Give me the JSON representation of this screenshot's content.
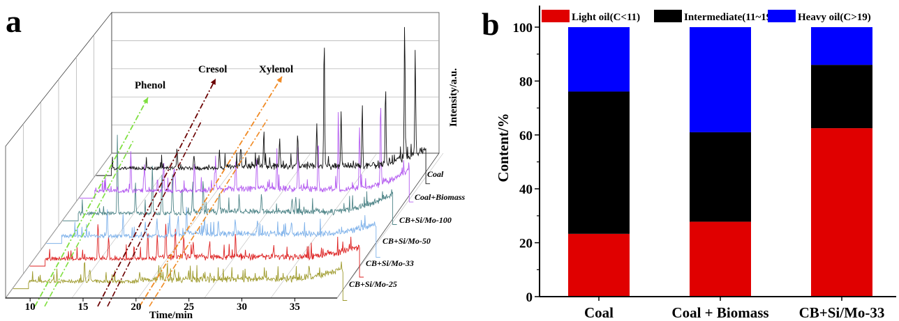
{
  "panels": {
    "a": {
      "letter": "a",
      "x_title": "Time/min",
      "y_title": "Intensity/a.u.",
      "x_ticks": [
        "10",
        "15",
        "20",
        "25",
        "30",
        "35"
      ],
      "annotations": [
        {
          "label": "Phenol",
          "color": "#7fdf3f"
        },
        {
          "label": "Cresol",
          "color": "#6b0000"
        },
        {
          "label": "Xylenol",
          "color": "#f08a24"
        }
      ]
    },
    "b": {
      "letter": "b",
      "y_title": "Content/%",
      "y_ticks": [
        "0",
        "20",
        "40",
        "60",
        "80",
        "100"
      ]
    }
  },
  "chart_data": [
    {
      "type": "line",
      "panel": "a",
      "xlabel": "Time/min",
      "ylabel": "Intensity/a.u.",
      "xlim": [
        9,
        39
      ],
      "x_ticks": [
        10,
        15,
        20,
        25,
        30,
        35
      ],
      "grid": true,
      "series": [
        {
          "name": "CB+Si/Mo-25",
          "color": "#9e9a2c",
          "peaks": [
            [
              14.6,
              28
            ],
            [
              15.1,
              18
            ],
            [
              19.8,
              12
            ],
            [
              21.6,
              20
            ],
            [
              22.4,
              12
            ],
            [
              23.1,
              14
            ],
            [
              35.8,
              20
            ]
          ]
        },
        {
          "name": "CB+Si/Mo-33",
          "color": "#dd2222",
          "peaks": [
            [
              14.3,
              55
            ],
            [
              15.3,
              35
            ],
            [
              17.7,
              18
            ],
            [
              19.0,
              40
            ],
            [
              19.9,
              35
            ],
            [
              20.7,
              48
            ],
            [
              21.6,
              42
            ],
            [
              22.4,
              28
            ],
            [
              23.3,
              22
            ],
            [
              24.8,
              18
            ],
            [
              27.3,
              22
            ],
            [
              30.9,
              18
            ]
          ]
        },
        {
          "name": "CB+Si/Mo-50",
          "color": "#7fb2ea",
          "peaks": [
            [
              13.6,
              38
            ],
            [
              15.1,
              30
            ],
            [
              17.2,
              20
            ],
            [
              18.3,
              26
            ],
            [
              19.5,
              32
            ],
            [
              20.3,
              28
            ],
            [
              21.1,
              40
            ],
            [
              22.8,
              24
            ],
            [
              24.1,
              22
            ],
            [
              25.7,
              20
            ],
            [
              27.8,
              18
            ],
            [
              31.0,
              18
            ]
          ]
        },
        {
          "name": "CB+Si/Mo-100",
          "color": "#4f8588",
          "peaks": [
            [
              13.0,
              105
            ],
            [
              14.7,
              45
            ],
            [
              16.3,
              70
            ],
            [
              17.2,
              55
            ],
            [
              18.2,
              60
            ],
            [
              19.1,
              40
            ],
            [
              20.1,
              35
            ],
            [
              21.1,
              42
            ],
            [
              22.6,
              30
            ],
            [
              24.5,
              25
            ],
            [
              26.6,
              22
            ],
            [
              29.5,
              18
            ]
          ]
        },
        {
          "name": "Coal+Biomass",
          "color": "#b45cf0",
          "peaks": [
            [
              12.7,
              55
            ],
            [
              14.0,
              38
            ],
            [
              15.8,
              45
            ],
            [
              16.8,
              36
            ],
            [
              18.7,
              40
            ],
            [
              20.7,
              48
            ],
            [
              22.6,
              42
            ],
            [
              24.6,
              50
            ],
            [
              26.5,
              55
            ],
            [
              28.5,
              60
            ],
            [
              30.4,
              70
            ],
            [
              32.3,
              110
            ],
            [
              34.3,
              85
            ],
            [
              36.3,
              120
            ]
          ]
        },
        {
          "name": "Coal",
          "color": "#111111",
          "peaks": [
            [
              15.5,
              30
            ],
            [
              17.1,
              20
            ],
            [
              19.5,
              25
            ],
            [
              21.5,
              28
            ],
            [
              23.7,
              55
            ],
            [
              25.2,
              40
            ],
            [
              26.9,
              48
            ],
            [
              28.7,
              60
            ],
            [
              29.4,
              185
            ],
            [
              31.0,
              80
            ],
            [
              33.0,
              90
            ],
            [
              35.2,
              110
            ],
            [
              37.0,
              195
            ],
            [
              38.0,
              150
            ]
          ]
        }
      ]
    },
    {
      "type": "bar",
      "panel": "b",
      "stacked": true,
      "categories": [
        "Coal",
        "Coal + Biomass",
        "CB+Si/Mo-33"
      ],
      "ylabel": "Content/%",
      "ylim": [
        0,
        108
      ],
      "y_ticks": [
        0,
        20,
        40,
        60,
        80,
        100
      ],
      "legend_position": "top",
      "series": [
        {
          "name": "Light oil(C<11)",
          "color": "#e00000",
          "values": [
            23.3,
            27.8,
            62.5
          ]
        },
        {
          "name": "Intermediate(11~19)",
          "color": "#000000",
          "values": [
            52.8,
            33.2,
            23.5
          ]
        },
        {
          "name": "Heavy oil(C>19)",
          "color": "#0000ff",
          "values": [
            23.9,
            39.0,
            14.0
          ]
        }
      ]
    }
  ]
}
